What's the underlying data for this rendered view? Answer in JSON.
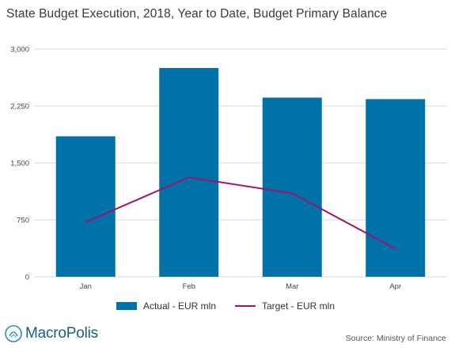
{
  "title": "State Budget Execution, 2018, Year to Date, Budget Primary Balance",
  "colors": {
    "actual": "#0072a8",
    "target": "#a0126e",
    "grid": "#d9d9d9",
    "brand": "#1a5e86"
  },
  "chart_data": {
    "type": "bar",
    "categories": [
      "Jan",
      "Feb",
      "Mar",
      "Apr"
    ],
    "series": [
      {
        "name": "Actual - EUR mln",
        "type": "bar",
        "values": [
          1850,
          2750,
          2360,
          2340
        ]
      },
      {
        "name": "Target - EUR mln",
        "type": "line",
        "values": [
          720,
          1310,
          1100,
          370
        ]
      }
    ],
    "ylim": [
      0,
      3000
    ],
    "yticks": [
      0,
      750,
      1500,
      2250,
      3000
    ],
    "ytick_labels": [
      "0",
      "750",
      "1,500",
      "2,250",
      "3,000"
    ],
    "grid": true,
    "legend_position": "bottom"
  },
  "footer": {
    "logo_text": "MacroPolis",
    "source": "Source: Ministry of Finance"
  }
}
